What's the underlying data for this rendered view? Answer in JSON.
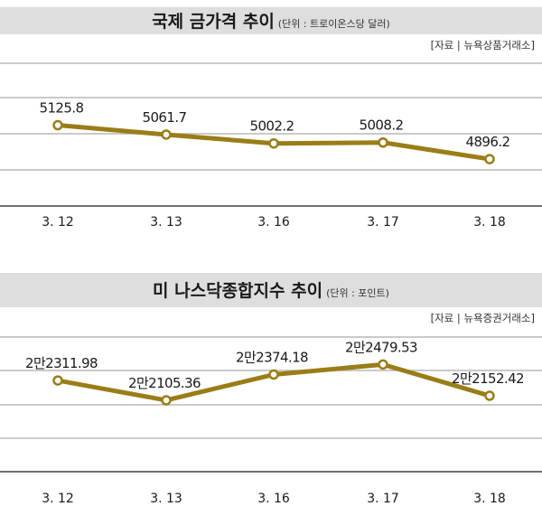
{
  "colors": {
    "line": "#9a7d17",
    "title_bar": "#dedede",
    "marker_fill": "#ffffff"
  },
  "chart_data": [
    {
      "type": "line",
      "title": "국제 금가격 추이",
      "unit": "(단위 : 트로이온스당 달러)",
      "source": "[자료 | 뉴욕상품거래소]",
      "categories": [
        "3. 12",
        "3. 13",
        "3. 16",
        "3. 17",
        "3. 18"
      ],
      "values": [
        5125.8,
        5061.7,
        5002.2,
        5008.2,
        4896.2
      ],
      "labels": [
        "5125.8",
        "5061.7",
        "5002.2",
        "5008.2",
        "4896.2"
      ],
      "ylim": [
        4750,
        5300
      ],
      "grid": true
    },
    {
      "type": "line",
      "title": "미 나스닥종합지수 추이",
      "unit": "(단위 : 포인트)",
      "source": "[자료 | 뉴욕증권거래소]",
      "categories": [
        "3. 12",
        "3. 13",
        "3. 16",
        "3. 17",
        "3. 18"
      ],
      "values": [
        22311.98,
        22105.36,
        22374.18,
        22479.53,
        22152.42
      ],
      "labels": [
        "2만2311.98",
        "2만2105.36",
        "2만2374.18",
        "2만2479.53",
        "2만2152.42"
      ],
      "ylim": [
        21850,
        22700
      ],
      "grid": true
    }
  ]
}
